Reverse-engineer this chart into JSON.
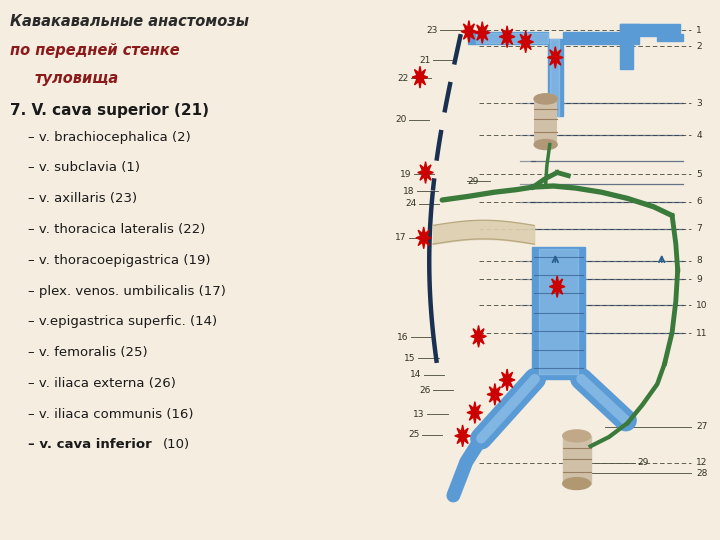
{
  "bg_color": "#f5ede0",
  "title_line1": "Кавакавальные анастомозы",
  "title_line2": "по передней стенке",
  "title_line3": "туловища",
  "title_color1": "#2a2a2a",
  "title_color2": "#8b1a1a",
  "main_item": "7. V. cava superior (21)",
  "items": [
    "– v. brachiocephalica (2)",
    "– v. subclavia (1)",
    "– v. axillaris (23)",
    "– v. thoracica lateralis (22)",
    "– v. thoracoepigastrica (19)",
    "– plex. venos. umbilicalis (17)",
    "– v.epigastrica superfic. (14)",
    "– v. femoralis (25)",
    "– v. iliaca externa (26)",
    "– v. iliaca communis (16)",
    "– v. cava inferior (10)"
  ],
  "text_color": "#1a1a1a",
  "blue_color": "#5b9bd5",
  "blue_light": "#a8d0ef",
  "green_color": "#3a7a3a",
  "dark_color": "#1a3050",
  "star_color": "#cc0000",
  "label_color": "#333322",
  "line_color": "#555544"
}
